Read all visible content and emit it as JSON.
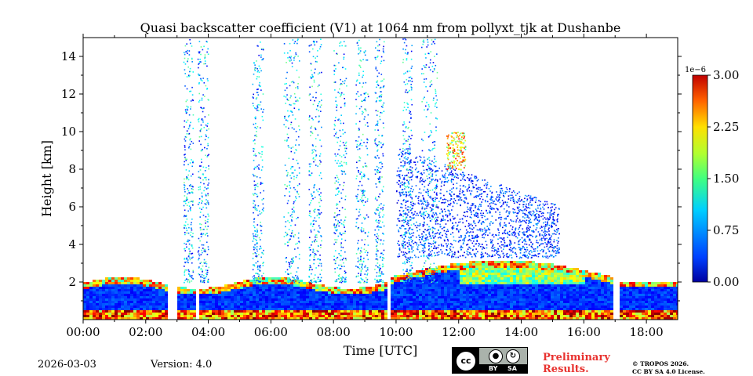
{
  "chart_data": {
    "type": "heatmap",
    "title": "Quasi backscatter coefficient (V1) at 1064 nm from pollyxt_tjk at Dushanbe",
    "xlabel": "Time [UTC]",
    "ylabel": "Height [km]",
    "xlim_hours": [
      0,
      19
    ],
    "ylim_km": [
      0,
      15
    ],
    "x_ticks": [
      {
        "value": 0,
        "label": "00:00"
      },
      {
        "value": 2,
        "label": "02:00"
      },
      {
        "value": 4,
        "label": "04:00"
      },
      {
        "value": 6,
        "label": "06:00"
      },
      {
        "value": 8,
        "label": "08:00"
      },
      {
        "value": 10,
        "label": "10:00"
      },
      {
        "value": 12,
        "label": "12:00"
      },
      {
        "value": 14,
        "label": "14:00"
      },
      {
        "value": 16,
        "label": "16:00"
      },
      {
        "value": 18,
        "label": "18:00"
      }
    ],
    "y_ticks": [
      {
        "value": 2,
        "label": "2"
      },
      {
        "value": 4,
        "label": "4"
      },
      {
        "value": 6,
        "label": "6"
      },
      {
        "value": 8,
        "label": "8"
      },
      {
        "value": 10,
        "label": "10"
      },
      {
        "value": 12,
        "label": "12"
      },
      {
        "value": 14,
        "label": "14"
      }
    ],
    "colorbar": {
      "range": [
        0.0,
        3.0
      ],
      "multiplier_label": "1e−6",
      "ticks": [
        {
          "value": 0.0,
          "label": "0.00"
        },
        {
          "value": 0.75,
          "label": "0.75"
        },
        {
          "value": 1.5,
          "label": "1.50"
        },
        {
          "value": 2.25,
          "label": "2.25"
        },
        {
          "value": 3.0,
          "label": "3.00"
        }
      ],
      "colormap": "jet"
    },
    "data_gaps_hours": [
      [
        2.62,
        2.97
      ],
      [
        3.55,
        3.62
      ],
      [
        5.72,
        5.78
      ],
      [
        9.72,
        9.82
      ],
      [
        16.9,
        17.08
      ]
    ],
    "layers": [
      {
        "name": "boundary layer",
        "t_start": 0.0,
        "t_end": 19.0,
        "base_km": 0.0,
        "top_km_approx": 2.3,
        "value_approx": 0.6
      },
      {
        "name": "elevated aerosol layer",
        "t_start": 12.0,
        "t_end": 16.0,
        "base_km_approx": 2.0,
        "top_km_approx": 3.5,
        "value_approx": 1.5
      },
      {
        "name": "upper aerosol / noise region",
        "t_start": 10.0,
        "t_end": 15.2,
        "base_km_approx": 3.5,
        "top_km_approx": 8.0,
        "value_approx": 0.3
      },
      {
        "name": "cloud",
        "t_start": 11.6,
        "t_end": 12.2,
        "base_km_approx": 8.0,
        "top_km_approx": 10.0,
        "value_approx": 2.0
      }
    ]
  },
  "footer": {
    "date": "2026-03-03",
    "version": "Version: 4.0",
    "license_badge": {
      "cc": "cc",
      "by": "BY",
      "sa": "SA"
    },
    "preliminary_line1": "Preliminary",
    "preliminary_line2": "Results.",
    "copyright_line1": "© TROPOS 2026.",
    "copyright_line2": "CC BY SA 4.0 License."
  },
  "colors": {
    "preliminary": "#e8322f",
    "badge_bg": "#aab2ab"
  }
}
